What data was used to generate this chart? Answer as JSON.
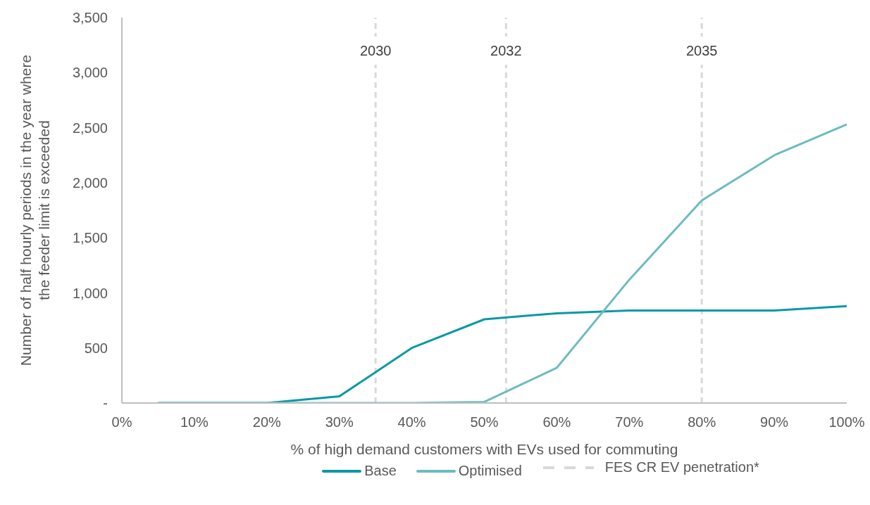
{
  "chart_data": {
    "type": "line",
    "xlabel": "% of high demand customers with EVs used for commuting",
    "ylabel": "Number of half hourly periods in the year where the feeder limit is exceeded",
    "x": [
      5,
      20,
      30,
      40,
      50,
      60,
      70,
      80,
      90,
      100
    ],
    "series": [
      {
        "name": "Base",
        "color": "#0a99a6",
        "values": [
          0,
          0,
          60,
          500,
          760,
          815,
          840,
          840,
          840,
          880
        ]
      },
      {
        "name": "Optimised",
        "color": "#6bbcc0",
        "values": [
          0,
          0,
          0,
          0,
          10,
          320,
          1120,
          1840,
          2250,
          2530
        ]
      }
    ],
    "xlim": [
      0,
      100
    ],
    "xticks": [
      {
        "value": 0,
        "label": "0%"
      },
      {
        "value": 10,
        "label": "10%"
      },
      {
        "value": 20,
        "label": "20%"
      },
      {
        "value": 30,
        "label": "30%"
      },
      {
        "value": 40,
        "label": "40%"
      },
      {
        "value": 50,
        "label": "50%"
      },
      {
        "value": 60,
        "label": "60%"
      },
      {
        "value": 70,
        "label": "70%"
      },
      {
        "value": 80,
        "label": "80%"
      },
      {
        "value": 90,
        "label": "90%"
      },
      {
        "value": 100,
        "label": "100%"
      }
    ],
    "ylim": [
      0,
      3500
    ],
    "yticks": [
      {
        "value": 0,
        "label": "-"
      },
      {
        "value": 500,
        "label": "500"
      },
      {
        "value": 1000,
        "label": "1,000"
      },
      {
        "value": 1500,
        "label": "1,500"
      },
      {
        "value": 2000,
        "label": "2,000"
      },
      {
        "value": 2500,
        "label": "2,500"
      },
      {
        "value": 3000,
        "label": "3,000"
      },
      {
        "value": 3500,
        "label": "3,500"
      }
    ],
    "ref_lines": [
      {
        "axis": "x",
        "value": 35,
        "color": "#d9d9d9",
        "line_style": "dashed"
      },
      {
        "axis": "x",
        "value": 53,
        "color": "#d9d9d9",
        "line_style": "dashed"
      },
      {
        "axis": "x",
        "value": 80,
        "color": "#d9d9d9",
        "line_style": "dashed"
      }
    ],
    "annotations": [
      "FES CR EV penetration*",
      {
        "text": "2030",
        "x": 35,
        "y": 3200
      },
      {
        "text": "2032",
        "x": 53,
        "y": 3200
      },
      {
        "text": "2035",
        "x": 80,
        "y": 3200
      }
    ],
    "grid": false,
    "legend": "bottom",
    "marker": "none",
    "line_style": "solid"
  }
}
